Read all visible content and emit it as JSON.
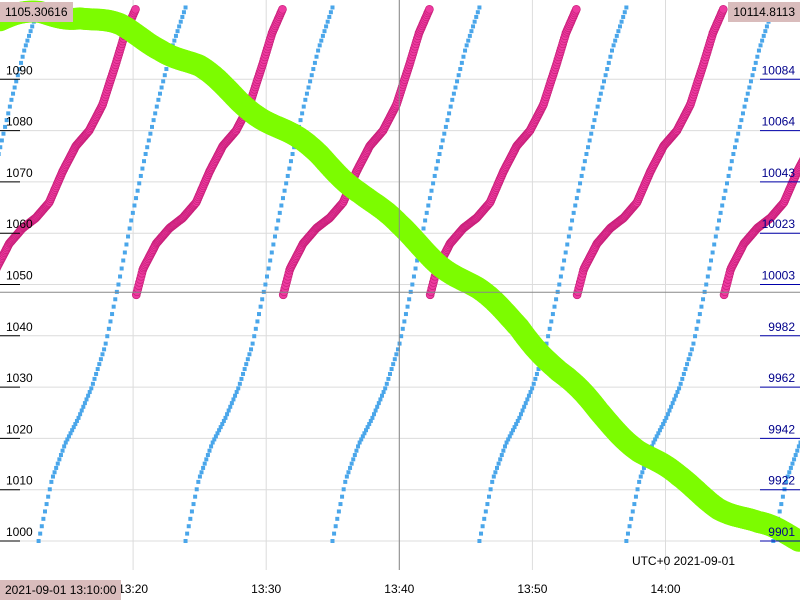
{
  "chart_data": {
    "type": "scatter",
    "title": "",
    "timezone_label": "UTC+0 2021-09-01",
    "x_range_label_start": "2021-09-01 13:10:00",
    "top_left_value": "1105.30616",
    "top_right_value": "10114.8113",
    "x_ticks": [
      "13:20",
      "13:30",
      "13:40",
      "13:50",
      "14:00"
    ],
    "x_range_minutes": [
      0,
      60
    ],
    "y_left_ticks": [
      "1000",
      "1010",
      "1020",
      "1030",
      "1040",
      "1050",
      "1060",
      "1070",
      "1080",
      "1090"
    ],
    "y_left_range": [
      997,
      1105.30616
    ],
    "y_right_ticks": [
      "9901",
      "9922",
      "9942",
      "9962",
      "9982",
      "10003",
      "10023",
      "10043",
      "10064",
      "10084"
    ],
    "crosshair": {
      "time": "13:40",
      "y_left": 1048.5
    },
    "series": [
      {
        "color": "#7cfc00",
        "style": "thick-band",
        "x_minutes": [
          0,
          3,
          6,
          9,
          12,
          15,
          18,
          21,
          24,
          27,
          30,
          33,
          36,
          39,
          42,
          45,
          48,
          51,
          54,
          57,
          60
        ],
        "values": [
          1101.5,
          1102.8,
          1102.5,
          1100,
          1096.5,
          1092,
          1086,
          1080.5,
          1075,
          1068.5,
          1061,
          1054.5,
          1048.5,
          1042,
          1033,
          1025,
          1018,
          1012,
          1007,
          1003,
          1000.5
        ]
      },
      {
        "color": "#ee3aa0",
        "style": "sawtooth",
        "cycle_minutes": 11.04,
        "cycle_start_minutes": -0.8,
        "cycle_x_minutes": [
          0,
          0.5,
          1.5,
          2.5,
          3.5,
          4.5,
          5.5,
          6.5,
          7.5,
          8.5,
          9.5,
          10.2,
          11.04
        ],
        "cycle_values": [
          1048,
          1053,
          1058,
          1061,
          1063,
          1066,
          1072,
          1077,
          1080,
          1085,
          1093,
          1099,
          1104
        ]
      },
      {
        "color": "#4aa6ea",
        "style": "sawtooth-dotted",
        "cycle_minutes": 11.04,
        "cycle_start_minutes": 2.9,
        "cycle_x_minutes": [
          0,
          1,
          2,
          3,
          4,
          5,
          6,
          7,
          8,
          9,
          10,
          11.04
        ],
        "cycle_values": [
          1000,
          1012,
          1019,
          1024,
          1030,
          1038,
          1050,
          1063,
          1075,
          1086,
          1096,
          1104
        ]
      }
    ]
  }
}
